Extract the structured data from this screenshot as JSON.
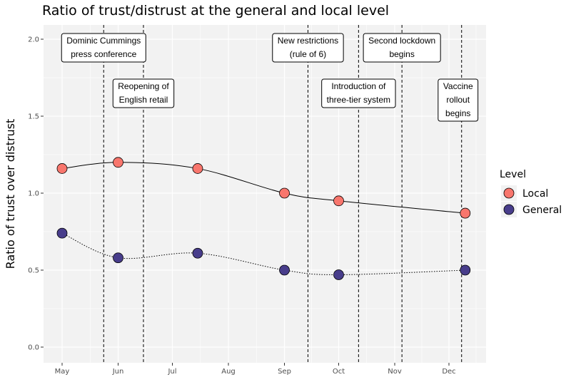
{
  "chart_data": {
    "type": "line",
    "title": "Ratio of trust/distrust at the general and local level",
    "xlabel": "",
    "ylabel": "Ratio of trust over distrust",
    "x_ticks": [
      "May",
      "Jun",
      "Jul",
      "Aug",
      "Sep",
      "Oct",
      "Nov",
      "Dec"
    ],
    "y_ticks": [
      "0.0",
      "0.5",
      "1.0",
      "1.5",
      "2.0"
    ],
    "ylim": [
      0,
      2
    ],
    "grid": true,
    "legend": {
      "title": "Level",
      "position": "right"
    },
    "series": [
      {
        "name": "Local",
        "color": "#f8766d",
        "line_style": "solid",
        "points": [
          {
            "x": "2020-05-01",
            "y": 1.16
          },
          {
            "x": "2020-06-01",
            "y": 1.2
          },
          {
            "x": "2020-07-15",
            "y": 1.16
          },
          {
            "x": "2020-09-01",
            "y": 1.0
          },
          {
            "x": "2020-10-01",
            "y": 0.95
          },
          {
            "x": "2020-12-10",
            "y": 0.87
          }
        ]
      },
      {
        "name": "General",
        "color": "#483d8b",
        "line_style": "dotted",
        "points": [
          {
            "x": "2020-05-01",
            "y": 0.74
          },
          {
            "x": "2020-06-01",
            "y": 0.58
          },
          {
            "x": "2020-07-15",
            "y": 0.61
          },
          {
            "x": "2020-09-01",
            "y": 0.5
          },
          {
            "x": "2020-10-01",
            "y": 0.47
          },
          {
            "x": "2020-12-10",
            "y": 0.5
          }
        ]
      }
    ],
    "events": [
      {
        "date": "2020-05-24",
        "label": [
          "Dominic Cummings",
          "press conference"
        ]
      },
      {
        "date": "2020-06-15",
        "label": [
          "Reopening of",
          "English retail"
        ]
      },
      {
        "date": "2020-09-14",
        "label": [
          "New restrictions",
          "(rule of 6)"
        ]
      },
      {
        "date": "2020-10-12",
        "label": [
          "Introduction of",
          "three-tier system"
        ]
      },
      {
        "date": "2020-11-05",
        "label": [
          "Second lockdown",
          "begins"
        ]
      },
      {
        "date": "2020-12-08",
        "label": [
          "Vaccine",
          "rollout",
          "begins"
        ]
      }
    ]
  }
}
